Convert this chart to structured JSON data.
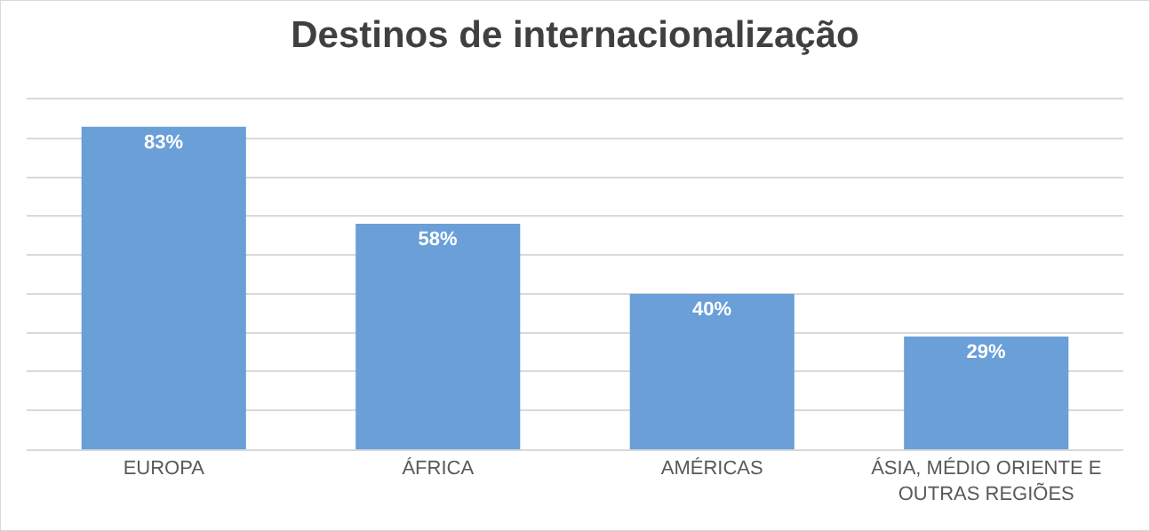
{
  "chart_data": {
    "type": "bar",
    "title": "Destinos de internacionalização",
    "categories": [
      "EUROPA",
      "ÁFRICA",
      "AMÉRICAS",
      "ÁSIA, MÉDIO ORIENTE E OUTRAS REGIÕES"
    ],
    "values": [
      83,
      58,
      40,
      29
    ],
    "value_labels": [
      "83%",
      "58%",
      "40%",
      "29%"
    ],
    "color": "#6a9fd8",
    "ylim": [
      0,
      90
    ],
    "yticks": [
      {
        "value": 0,
        "label": null
      },
      {
        "value": 10,
        "label": null
      },
      {
        "value": 20,
        "label": null
      },
      {
        "value": 30,
        "label": null
      },
      {
        "value": 40,
        "label": null
      },
      {
        "value": 50,
        "label": null
      },
      {
        "value": 60,
        "label": null
      },
      {
        "value": 70,
        "label": null
      },
      {
        "value": 80,
        "label": null
      },
      {
        "value": 90,
        "label": null
      }
    ],
    "grid": "y",
    "tick_labels": "x",
    "legend": false
  }
}
